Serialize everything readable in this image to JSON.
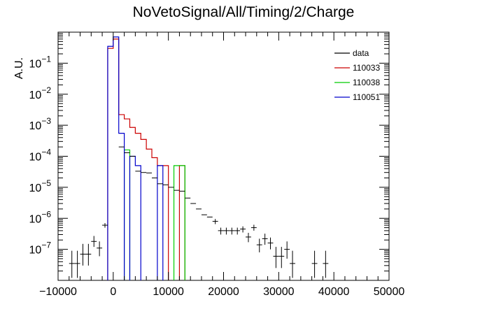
{
  "chart_data": {
    "type": "histogram",
    "title": "NoVetoSignal/All/Timing/2/Charge",
    "xlabel": "",
    "ylabel": "A.U.",
    "xlim": [
      -10000,
      50000
    ],
    "ylim": [
      1e-08,
      1.0
    ],
    "log_y": true,
    "grid": false,
    "x_ticks": [
      -10000,
      0,
      10000,
      20000,
      30000,
      40000,
      50000
    ],
    "x_tick_labels": [
      "−10000",
      "0",
      "10000",
      "20000",
      "30000",
      "40000",
      "50000"
    ],
    "y_ticks": [
      1e-07,
      1e-06,
      1e-05,
      0.0001,
      0.001,
      0.01,
      0.1
    ],
    "y_tick_labels": [
      {
        "base": "10",
        "exp": "−7"
      },
      {
        "base": "10",
        "exp": "−6"
      },
      {
        "base": "10",
        "exp": "−5"
      },
      {
        "base": "10",
        "exp": "−4"
      },
      {
        "base": "10",
        "exp": "−3"
      },
      {
        "base": "10",
        "exp": "−2"
      },
      {
        "base": "10",
        "exp": "−1"
      }
    ],
    "legend_position": "top-right",
    "legend": [
      {
        "label": "data",
        "color": "#000000"
      },
      {
        "label": "110033",
        "color": "#cc0000"
      },
      {
        "label": "110038",
        "color": "#00cc00"
      },
      {
        "label": "110051",
        "color": "#0000cc"
      }
    ],
    "bin_width": 1000,
    "data_points": [
      {
        "x": -7500,
        "y": 3.5e-08,
        "ylo": 1.2e-08,
        "yhi": 9e-08
      },
      {
        "x": -6500,
        "y": 3.5e-08,
        "ylo": 1.2e-08,
        "yhi": 9e-08
      },
      {
        "x": -5500,
        "y": 7e-08,
        "ylo": 3e-08,
        "yhi": 1.5e-07
      },
      {
        "x": -4500,
        "y": 7e-08,
        "ylo": 3e-08,
        "yhi": 1.5e-07
      },
      {
        "x": -3500,
        "y": 1.8e-07,
        "ylo": 1.2e-07,
        "yhi": 2.7e-07
      },
      {
        "x": -2500,
        "y": 1.1e-07,
        "ylo": 6e-08,
        "yhi": 1.8e-07
      },
      {
        "x": -1500,
        "y": 6e-07,
        "ylo": 5e-07,
        "yhi": 7e-07
      },
      {
        "x": 1500,
        "y": 0.0002
      },
      {
        "x": 2500,
        "y": 0.00013
      },
      {
        "x": 3500,
        "y": 0.0001
      },
      {
        "x": 4500,
        "y": 3.3e-05
      },
      {
        "x": 5500,
        "y": 3e-05
      },
      {
        "x": 6500,
        "y": 2.9e-05
      },
      {
        "x": 7500,
        "y": 2e-05
      },
      {
        "x": 8500,
        "y": 1.3e-05
      },
      {
        "x": 9500,
        "y": 1.2e-05
      },
      {
        "x": 10500,
        "y": 1e-05
      },
      {
        "x": 11500,
        "y": 8e-06
      },
      {
        "x": 12500,
        "y": 7.5e-06
      },
      {
        "x": 13500,
        "y": 4.5e-06
      },
      {
        "x": 14500,
        "y": 3e-06
      },
      {
        "x": 15500,
        "y": 2e-06
      },
      {
        "x": 16500,
        "y": 1.3e-06
      },
      {
        "x": 17500,
        "y": 1.1e-06
      },
      {
        "x": 18500,
        "y": 8e-07,
        "ylo": 6.5e-07,
        "yhi": 9.5e-07
      },
      {
        "x": 19500,
        "y": 4e-07,
        "ylo": 3e-07,
        "yhi": 5e-07
      },
      {
        "x": 20500,
        "y": 4e-07,
        "ylo": 3e-07,
        "yhi": 5e-07
      },
      {
        "x": 21500,
        "y": 4e-07,
        "ylo": 3e-07,
        "yhi": 5e-07
      },
      {
        "x": 22500,
        "y": 4e-07,
        "ylo": 3e-07,
        "yhi": 5e-07
      },
      {
        "x": 23500,
        "y": 4.5e-07,
        "ylo": 3.5e-07,
        "yhi": 5.5e-07
      },
      {
        "x": 24500,
        "y": 2.5e-07,
        "ylo": 1.7e-07,
        "yhi": 3.4e-07
      },
      {
        "x": 25500,
        "y": 5e-07,
        "ylo": 4e-07,
        "yhi": 6.2e-07
      },
      {
        "x": 26500,
        "y": 1.4e-07,
        "ylo": 8e-08,
        "yhi": 2.2e-07
      },
      {
        "x": 27500,
        "y": 2.2e-07,
        "ylo": 1.4e-07,
        "yhi": 3.2e-07
      },
      {
        "x": 28500,
        "y": 1.6e-07,
        "ylo": 1e-07,
        "yhi": 2.4e-07
      },
      {
        "x": 29500,
        "y": 6e-08,
        "ylo": 2.5e-08,
        "yhi": 1.2e-07
      },
      {
        "x": 30500,
        "y": 6e-08,
        "ylo": 2.5e-08,
        "yhi": 1.2e-07
      },
      {
        "x": 31500,
        "y": 1e-07,
        "ylo": 5e-08,
        "yhi": 1.8e-07
      },
      {
        "x": 32500,
        "y": 3.5e-08,
        "ylo": 1.2e-08,
        "yhi": 9e-08
      },
      {
        "x": 36500,
        "y": 3.5e-08,
        "ylo": 1.2e-08,
        "yhi": 9e-08
      },
      {
        "x": 38500,
        "y": 3.5e-08,
        "ylo": 1.2e-08,
        "yhi": 9e-08
      }
    ],
    "series": [
      {
        "name": "110033",
        "color": "#cc0000",
        "bins": [
          {
            "x": -500,
            "y": 0.3
          },
          {
            "x": 500,
            "y": 0.6
          },
          {
            "x": 1500,
            "y": 0.0022
          },
          {
            "x": 2500,
            "y": 0.0016
          },
          {
            "x": 3500,
            "y": 0.00085
          },
          {
            "x": 4500,
            "y": 0.00055
          },
          {
            "x": 5500,
            "y": 0.00035
          },
          {
            "x": 6500,
            "y": 0.00017
          },
          {
            "x": 7500,
            "y": 9e-05
          },
          {
            "x": 8500,
            "y": 5e-05
          },
          {
            "x": 9500,
            "y": 5e-05
          },
          {
            "x": 12500,
            "y": 5e-05
          }
        ]
      },
      {
        "name": "110038",
        "color": "#00cc00",
        "bins": [
          {
            "x": 2500,
            "y": 0.00016
          },
          {
            "x": 11500,
            "y": 5e-05
          },
          {
            "x": 12500,
            "y": 5e-05
          }
        ]
      },
      {
        "name": "110051",
        "color": "#0000cc",
        "bins": [
          {
            "x": -500,
            "y": 0.35
          },
          {
            "x": 500,
            "y": 0.7
          },
          {
            "x": 1500,
            "y": 0.00055
          },
          {
            "x": 3500,
            "y": 0.0001
          },
          {
            "x": 4500,
            "y": 5e-05
          },
          {
            "x": 8500,
            "y": 5e-05
          }
        ]
      }
    ]
  }
}
